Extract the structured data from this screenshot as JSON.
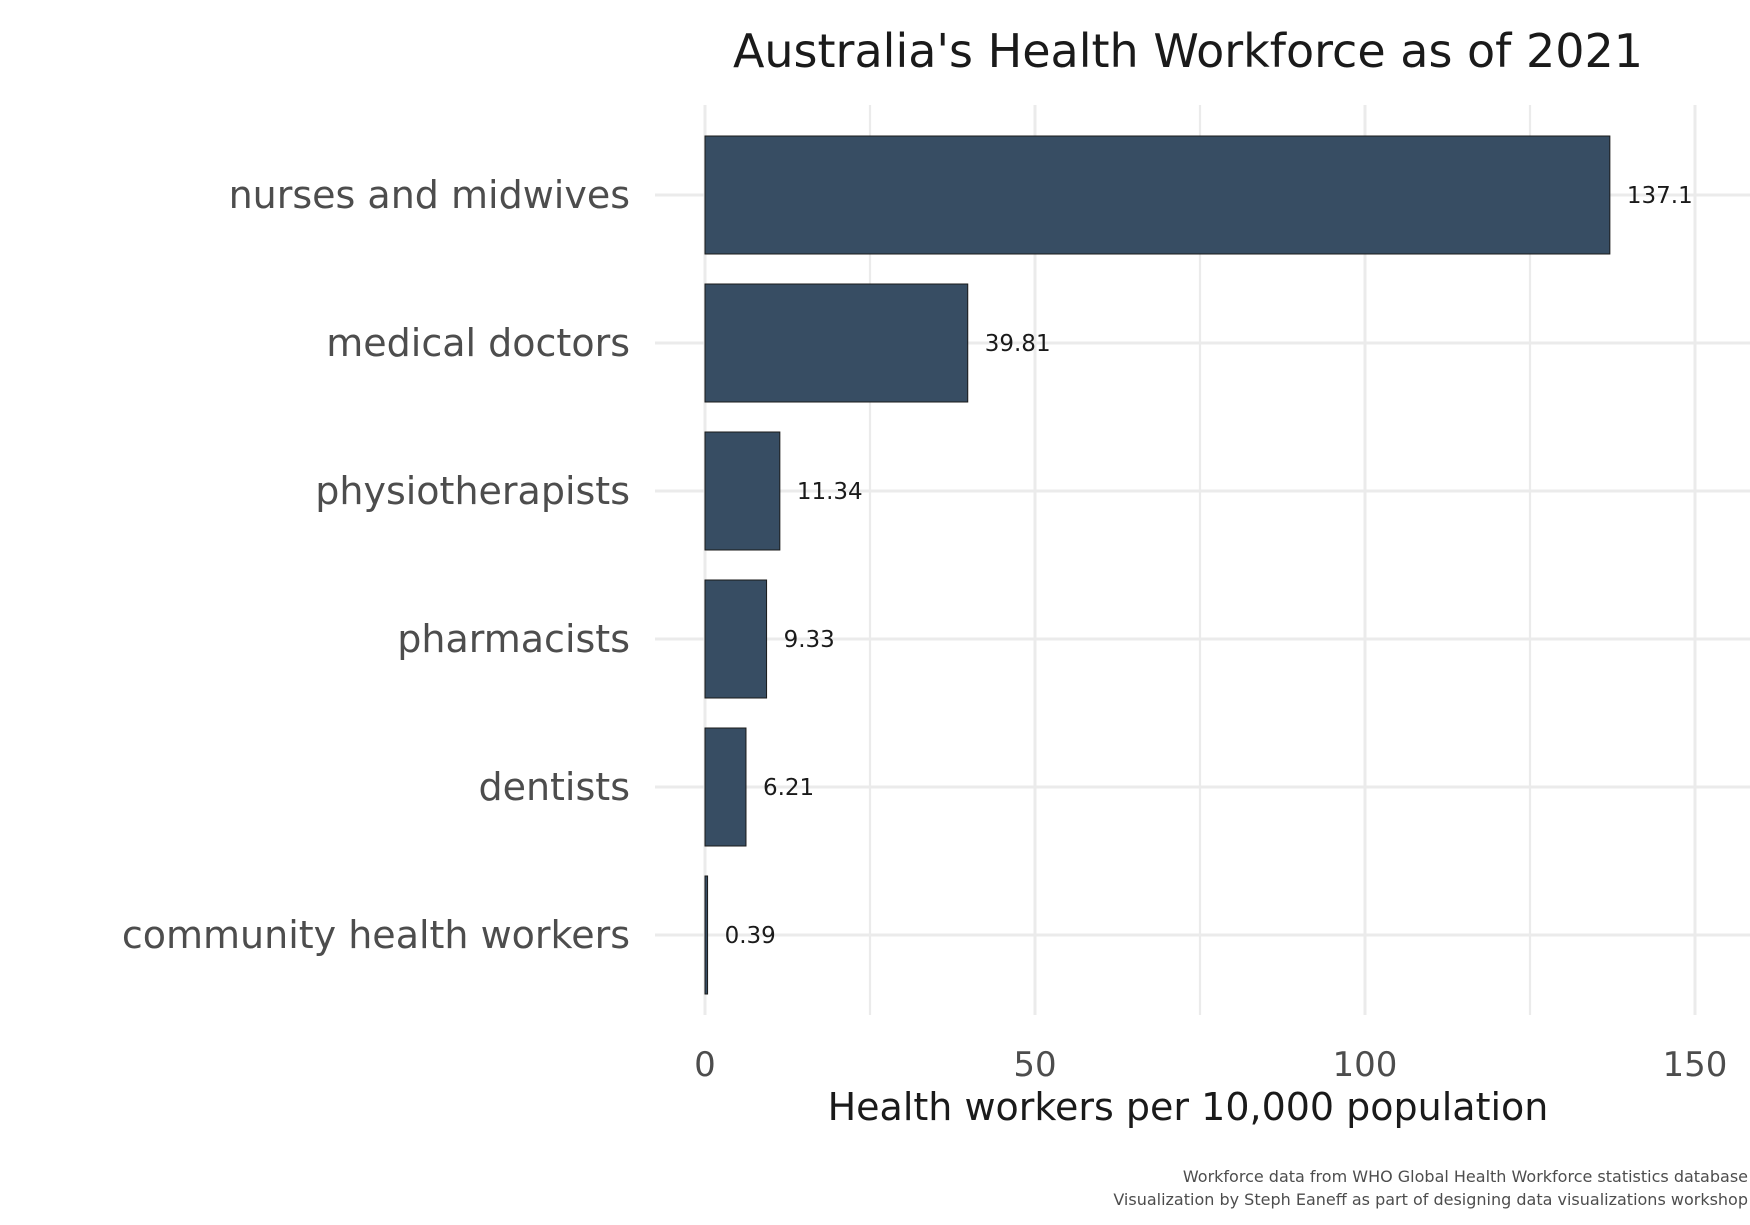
{
  "chart_data": {
    "type": "bar",
    "orientation": "horizontal",
    "title": "Australia's Health Workforce as of 2021",
    "xlabel": "Health workers per 10,000 population",
    "ylabel": "",
    "categories": [
      "nurses and midwives",
      "medical doctors",
      "physiotherapists",
      "pharmacists",
      "dentists",
      "community health workers"
    ],
    "values": [
      137.1,
      39.81,
      11.34,
      9.33,
      6.21,
      0.39
    ],
    "value_labels": [
      "137.1",
      "39.81",
      "11.34",
      "9.33",
      "6.21",
      "0.39"
    ],
    "xlim": [
      0,
      150
    ],
    "x_ticks": [
      0,
      50,
      100,
      150
    ],
    "x_tick_labels": [
      "0",
      "50",
      "100",
      "150"
    ],
    "grid": true,
    "bar_color": "#374d63",
    "caption": [
      "Workforce data from WHO Global Health Workforce statistics database",
      "Visualization by Steph Eaneff as part of designing data visualizations workshop"
    ]
  }
}
